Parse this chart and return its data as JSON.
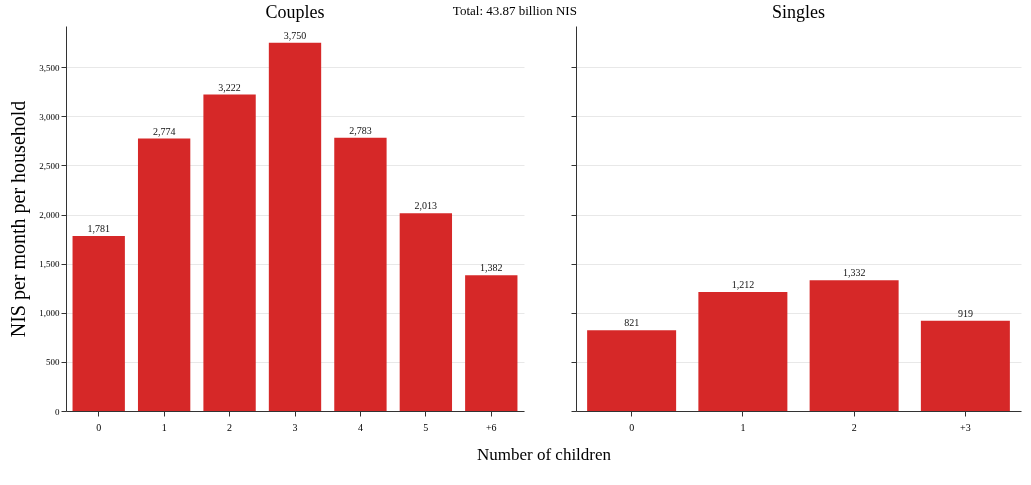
{
  "chart_data": [
    {
      "type": "bar",
      "title": "Couples",
      "ylabel": "NIS per month per household",
      "xlabel": "Number of children",
      "annotations": [
        "Total: 43.87 billion NIS"
      ],
      "categories": [
        "0",
        "1",
        "2",
        "3",
        "4",
        "5",
        "+6"
      ],
      "values": [
        1781,
        2774,
        3222,
        3750,
        2783,
        2013,
        1382
      ],
      "value_labels": [
        "1,781",
        "2,774",
        "3,222",
        "3,750",
        "2,783",
        "2,013",
        "1,382"
      ],
      "color": "#d62828",
      "ylim": [
        0,
        3920
      ],
      "yticks": [
        0,
        500,
        {
          "value": 1000,
          "label": "1,000"
        },
        {
          "value": 1500,
          "label": "1,500"
        },
        {
          "value": 2000,
          "label": "2,000"
        },
        {
          "value": 2500,
          "label": "2,500"
        },
        {
          "value": 3000,
          "label": "3,000"
        },
        {
          "value": 3500,
          "label": "3,500"
        }
      ],
      "grid": "y"
    },
    {
      "type": "bar",
      "title": "Singles",
      "categories": [
        "0",
        "1",
        "2",
        "+3"
      ],
      "values": [
        821,
        1212,
        1332,
        919
      ],
      "value_labels": [
        "821",
        "1,212",
        "1,332",
        "919"
      ],
      "color": "#d62828",
      "ylim": [
        0,
        3920
      ],
      "yticks": [
        0,
        500,
        1000,
        1500,
        2000,
        2500,
        3000,
        3500
      ],
      "grid": "y",
      "tick_labels": "x"
    }
  ]
}
